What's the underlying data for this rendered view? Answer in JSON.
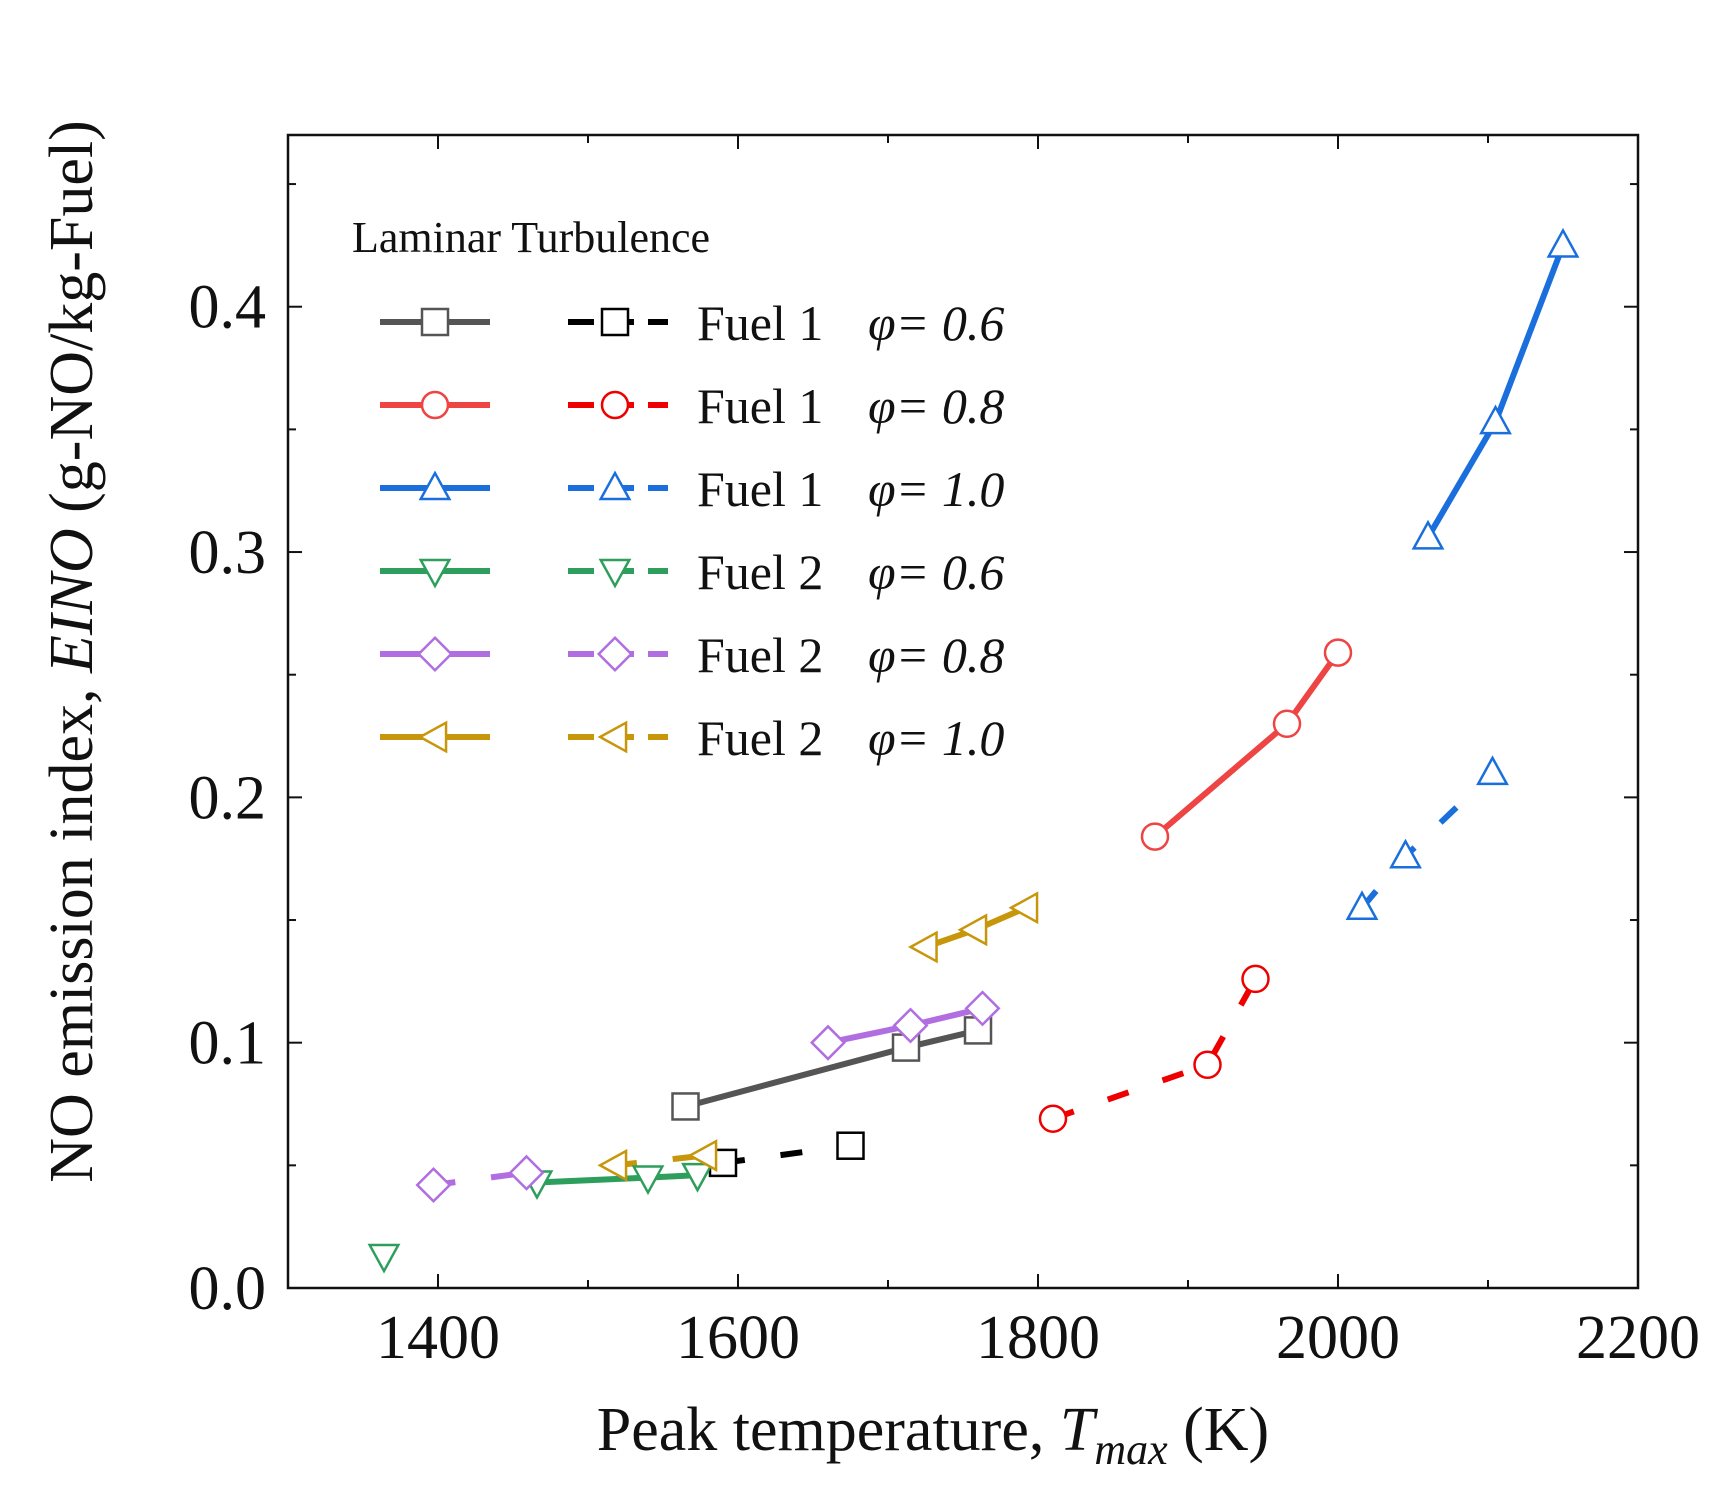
{
  "chart_data": {
    "type": "line",
    "title": "",
    "xlabel": {
      "prefix": "Peak temperature, ",
      "var": "T",
      "sub": "max",
      "suffix": " (K)"
    },
    "ylabel": {
      "prefix": "NO emission index, ",
      "var": "EINO",
      "suffix": " (g-NO/kg-Fuel)"
    },
    "xlim": [
      1300,
      2200
    ],
    "ylim": [
      0.0,
      0.47
    ],
    "x_ticks": [
      1400,
      1600,
      1800,
      2000,
      2200
    ],
    "y_ticks": [
      0.0,
      0.1,
      0.2,
      0.3,
      0.4
    ],
    "y_tick_labels": [
      "0.0",
      "0.1",
      "0.2",
      "0.3",
      "0.4"
    ],
    "legend": {
      "position": "top-left",
      "header": "Laminar Turbulence",
      "columns": [
        "Laminar",
        "Turbulence"
      ]
    },
    "series": [
      {
        "name": "Fuel 1 φ= 0.6",
        "fuel": "Fuel 1",
        "phi": "φ= 0.6",
        "marker": "square",
        "laminar_color": "#555555",
        "turbulence_color": "#000000",
        "laminar": {
          "x": [
            1565,
            1712,
            1760
          ],
          "y": [
            0.074,
            0.098,
            0.105
          ]
        },
        "turbulence": {
          "x": [
            1590,
            1675
          ],
          "y": [
            0.051,
            0.058
          ]
        }
      },
      {
        "name": "Fuel 1 φ= 0.8",
        "fuel": "Fuel 1",
        "phi": "φ= 0.8",
        "marker": "circle",
        "laminar_color": "#ee4444",
        "turbulence_color": "#ee0000",
        "laminar": {
          "x": [
            1878,
            1966,
            2000
          ],
          "y": [
            0.184,
            0.23,
            0.259
          ]
        },
        "turbulence": {
          "x": [
            1810,
            1913,
            1945
          ],
          "y": [
            0.069,
            0.091,
            0.126
          ]
        }
      },
      {
        "name": "Fuel 1 φ= 1.0",
        "fuel": "Fuel 1",
        "phi": "φ= 1.0",
        "marker": "triangle-up",
        "laminar_color": "#1a6fdd",
        "turbulence_color": "#1a6fdd",
        "laminar": {
          "x": [
            2060,
            2105,
            2150
          ],
          "y": [
            0.306,
            0.353,
            0.425
          ]
        },
        "turbulence": {
          "x": [
            2016,
            2045,
            2103
          ],
          "y": [
            0.155,
            0.176,
            0.21
          ]
        }
      },
      {
        "name": "Fuel 2 φ= 0.6",
        "fuel": "Fuel 2",
        "phi": "φ= 0.6",
        "marker": "triangle-down",
        "laminar_color": "#2e9e5c",
        "turbulence_color": "#2e9e5c",
        "laminar": {
          "x": [
            1466,
            1540,
            1573
          ],
          "y": [
            0.043,
            0.045,
            0.046
          ]
        },
        "turbulence": {
          "x": [
            1364
          ],
          "y": [
            0.013
          ]
        }
      },
      {
        "name": "Fuel 2 φ= 0.8",
        "fuel": "Fuel 2",
        "phi": "φ= 0.8",
        "marker": "diamond",
        "laminar_color": "#b06ee0",
        "turbulence_color": "#b06ee0",
        "laminar": {
          "x": [
            1660,
            1715,
            1763
          ],
          "y": [
            0.1,
            0.107,
            0.114
          ]
        },
        "turbulence": {
          "x": [
            1397,
            1459
          ],
          "y": [
            0.042,
            0.047
          ]
        }
      },
      {
        "name": "Fuel 2 φ= 1.0",
        "fuel": "Fuel 2",
        "phi": "φ= 1.0",
        "marker": "triangle-left",
        "laminar_color": "#c8960a",
        "turbulence_color": "#c8960a",
        "laminar": {
          "x": [
            1725,
            1758,
            1792
          ],
          "y": [
            0.139,
            0.146,
            0.155
          ]
        },
        "turbulence": {
          "x": [
            1518,
            1578
          ],
          "y": [
            0.05,
            0.054
          ]
        }
      }
    ]
  }
}
